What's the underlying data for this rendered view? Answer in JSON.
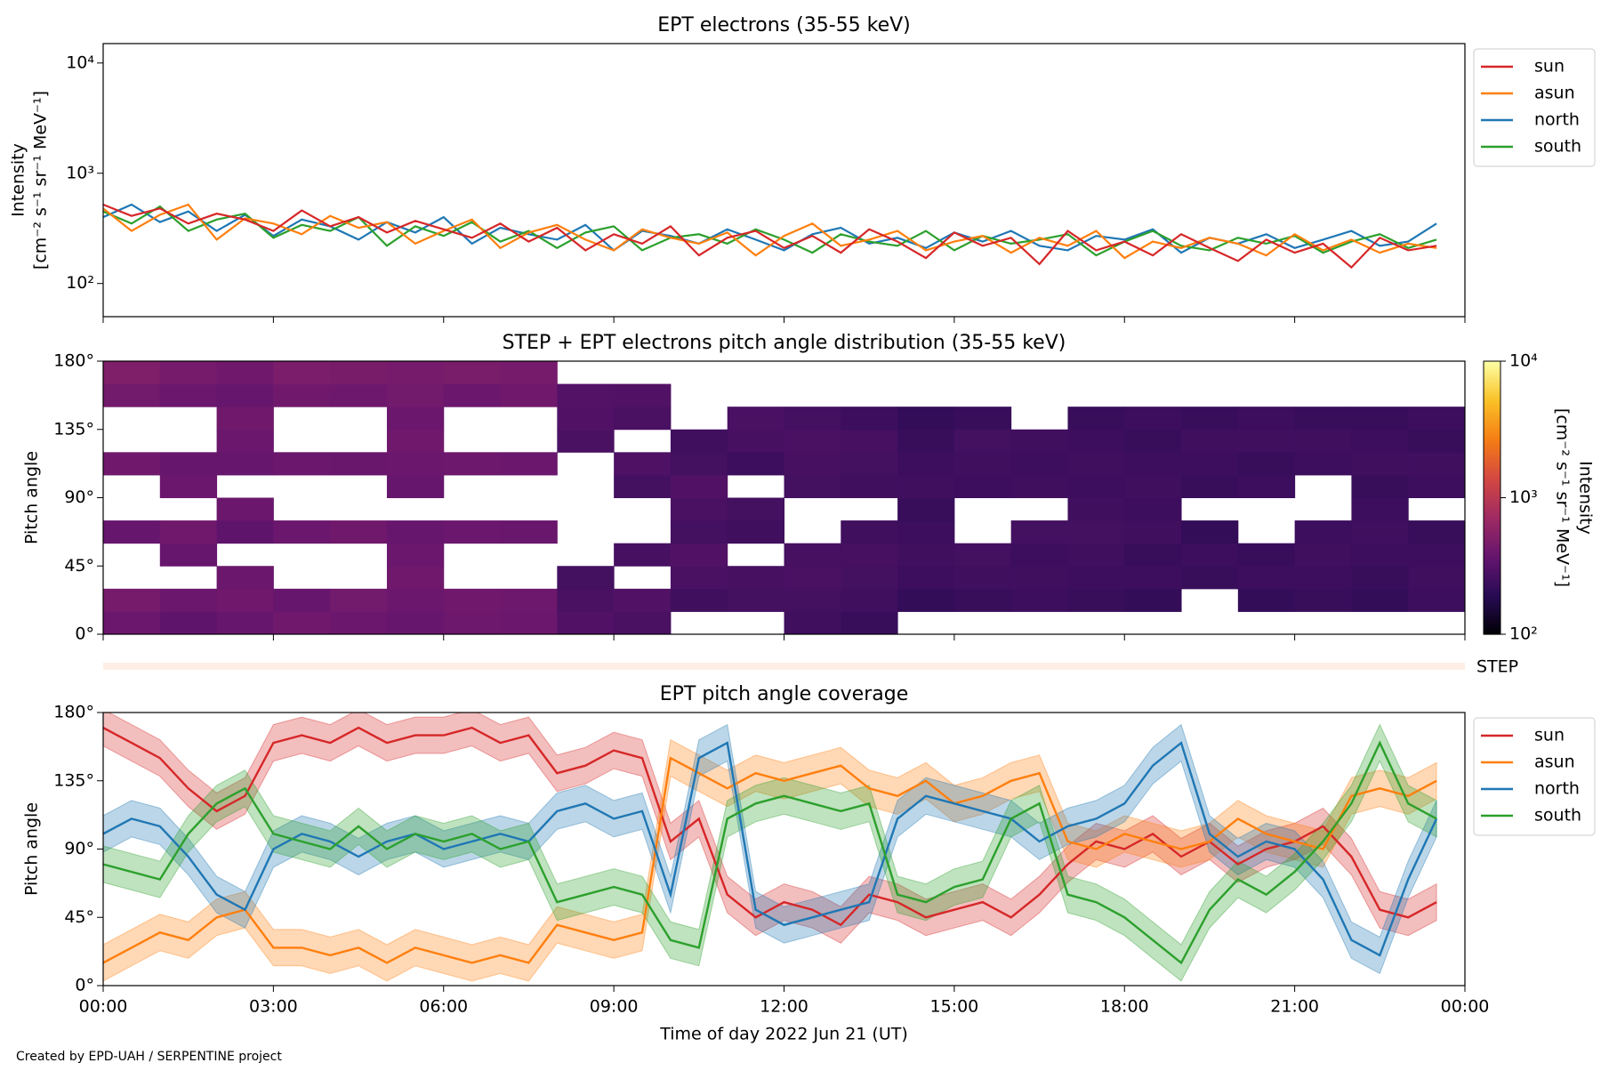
{
  "chart_data": [
    {
      "type": "line",
      "title": "EPT electrons (35-55 keV)",
      "ylabel": [
        "Intensity",
        "[cm⁻² s⁻¹ sr⁻¹ MeV⁻¹]"
      ],
      "log_y": true,
      "legend": "outside-right",
      "ylim": [
        50,
        15000
      ],
      "yticks": [
        {
          "value": 100,
          "label": "10²"
        },
        {
          "value": 1000,
          "label": "10³"
        },
        {
          "value": 10000,
          "label": "10⁴"
        }
      ],
      "x": [
        0,
        0.5,
        1,
        1.5,
        2,
        2.5,
        3,
        3.5,
        4,
        4.5,
        5,
        5.5,
        6,
        6.5,
        7,
        7.5,
        8,
        8.5,
        9,
        9.5,
        10,
        10.5,
        11,
        11.5,
        12,
        12.5,
        13,
        13.5,
        14,
        14.5,
        15,
        15.5,
        16,
        16.5,
        17,
        17.5,
        18,
        18.5,
        19,
        19.5,
        20,
        20.5,
        21,
        21.5,
        22,
        22.5,
        23,
        23.5
      ],
      "series": [
        {
          "name": "north",
          "color": "#1f77b4",
          "values": [
            400,
            520,
            360,
            450,
            300,
            420,
            270,
            380,
            330,
            250,
            360,
            290,
            400,
            230,
            320,
            280,
            250,
            340,
            200,
            300,
            270,
            230,
            310,
            250,
            200,
            280,
            320,
            230,
            260,
            210,
            290,
            240,
            300,
            220,
            200,
            270,
            250,
            310,
            190,
            260,
            230,
            280,
            210,
            250,
            300,
            220,
            240,
            350
          ]
        },
        {
          "name": "south",
          "color": "#2ca02c",
          "values": [
            450,
            350,
            500,
            300,
            380,
            430,
            260,
            340,
            300,
            400,
            220,
            330,
            270,
            360,
            240,
            300,
            210,
            290,
            330,
            200,
            260,
            280,
            230,
            310,
            250,
            190,
            280,
            240,
            220,
            300,
            200,
            270,
            230,
            250,
            280,
            180,
            240,
            300,
            220,
            200,
            260,
            230,
            270,
            190,
            240,
            280,
            210,
            250
          ]
        },
        {
          "name": "asun",
          "color": "#ff7f0e",
          "values": [
            480,
            300,
            420,
            520,
            250,
            390,
            350,
            280,
            410,
            320,
            360,
            230,
            300,
            380,
            210,
            290,
            340,
            250,
            200,
            310,
            260,
            230,
            290,
            180,
            270,
            350,
            220,
            250,
            300,
            200,
            240,
            270,
            190,
            260,
            220,
            300,
            170,
            240,
            210,
            260,
            230,
            180,
            280,
            200,
            250,
            190,
            230,
            210
          ]
        },
        {
          "name": "sun",
          "color": "#d62728",
          "values": [
            520,
            410,
            480,
            350,
            430,
            380,
            300,
            460,
            330,
            400,
            290,
            370,
            310,
            260,
            350,
            240,
            320,
            200,
            280,
            230,
            330,
            180,
            260,
            300,
            210,
            270,
            190,
            310,
            240,
            170,
            290,
            220,
            260,
            150,
            300,
            200,
            240,
            180,
            280,
            210,
            160,
            250,
            190,
            230,
            140,
            260,
            200,
            220
          ]
        }
      ],
      "legend_order": [
        3,
        2,
        0,
        1
      ]
    },
    {
      "type": "heatmap",
      "title": "STEP + EPT electrons pitch angle distribution (35-55 keV)",
      "ylabel": "Pitch angle",
      "colormap": "inferno",
      "log_color": true,
      "clim": [
        100,
        10000
      ],
      "cticks": [
        {
          "value": 100,
          "label": "10²"
        },
        {
          "value": 1000,
          "label": "10³"
        },
        {
          "value": 10000,
          "label": "10⁴"
        }
      ],
      "clabel": [
        "Intensity",
        "[cm⁻² s⁻¹ sr⁻¹ MeV⁻¹]"
      ],
      "ylim": [
        0,
        180
      ],
      "yticks": [
        {
          "value": 0,
          "label": "0°"
        },
        {
          "value": 45,
          "label": "45°"
        },
        {
          "value": 90,
          "label": "90°"
        },
        {
          "value": 135,
          "label": "135°"
        },
        {
          "value": 180,
          "label": "180°"
        }
      ],
      "xbins": [
        0,
        1,
        2,
        3,
        4,
        5,
        6,
        7,
        8,
        9,
        10,
        11,
        12,
        13,
        14,
        15,
        16,
        17,
        18,
        19,
        20,
        21,
        22,
        23,
        24
      ],
      "ybins": [
        0,
        15,
        30,
        45,
        60,
        75,
        90,
        105,
        120,
        135,
        150,
        165,
        180
      ],
      "z": [
        [
          400,
          450,
          null,
          null,
          380,
          null,
          null,
          420,
          null,
          null,
          430,
          500
        ],
        [
          350,
          400,
          null,
          380,
          420,
          null,
          400,
          380,
          null,
          null,
          400,
          450
        ],
        [
          380,
          420,
          400,
          null,
          350,
          400,
          null,
          380,
          400,
          420,
          380,
          420
        ],
        [
          420,
          380,
          null,
          null,
          400,
          null,
          null,
          400,
          null,
          null,
          420,
          480
        ],
        [
          400,
          430,
          null,
          null,
          420,
          null,
          null,
          390,
          null,
          null,
          410,
          460
        ],
        [
          380,
          400,
          420,
          400,
          380,
          null,
          380,
          400,
          420,
          400,
          430,
          450
        ],
        [
          410,
          420,
          null,
          null,
          400,
          null,
          null,
          410,
          null,
          null,
          400,
          470
        ],
        [
          400,
          410,
          null,
          null,
          390,
          null,
          null,
          400,
          null,
          null,
          420,
          450
        ],
        [
          300,
          280,
          260,
          null,
          null,
          null,
          null,
          null,
          280,
          300,
          310,
          null
        ],
        [
          280,
          300,
          null,
          270,
          null,
          null,
          260,
          290,
          null,
          280,
          300,
          null
        ],
        [
          null,
          250,
          280,
          300,
          260,
          280,
          300,
          260,
          250,
          null,
          null,
          null
        ],
        [
          null,
          260,
          270,
          null,
          250,
          260,
          null,
          240,
          270,
          280,
          null,
          null
        ],
        [
          250,
          260,
          280,
          270,
          null,
          null,
          260,
          270,
          280,
          260,
          null,
          null
        ],
        [
          230,
          250,
          260,
          270,
          250,
          null,
          250,
          260,
          270,
          240,
          null,
          null
        ],
        [
          null,
          220,
          240,
          250,
          240,
          230,
          250,
          240,
          230,
          220,
          null,
          null
        ],
        [
          null,
          230,
          250,
          260,
          null,
          null,
          240,
          250,
          260,
          230,
          null,
          null
        ],
        [
          null,
          240,
          250,
          240,
          260,
          null,
          250,
          240,
          250,
          null,
          null,
          null
        ],
        [
          null,
          230,
          240,
          250,
          260,
          250,
          240,
          250,
          240,
          230,
          null,
          null
        ],
        [
          null,
          220,
          240,
          230,
          250,
          240,
          250,
          240,
          230,
          240,
          null,
          null
        ],
        [
          null,
          null,
          230,
          240,
          220,
          null,
          230,
          240,
          250,
          230,
          null,
          null
        ],
        [
          null,
          220,
          240,
          230,
          null,
          null,
          240,
          230,
          250,
          240,
          null,
          null
        ],
        [
          null,
          230,
          240,
          250,
          240,
          null,
          null,
          240,
          250,
          230,
          null,
          null
        ],
        [
          null,
          220,
          230,
          240,
          250,
          240,
          230,
          250,
          240,
          230,
          null,
          null
        ],
        [
          null,
          240,
          250,
          240,
          230,
          null,
          240,
          250,
          230,
          240,
          null,
          null
        ]
      ],
      "step_label": "STEP"
    },
    {
      "type": "band",
      "title": "EPT pitch angle coverage",
      "ylabel": "Pitch angle",
      "xlabel": "Time of day 2022 Jun 21 (UT)",
      "legend": "outside-right",
      "xlim": [
        0,
        24
      ],
      "xticks": [
        {
          "value": 0,
          "label": "00:00"
        },
        {
          "value": 3,
          "label": "03:00"
        },
        {
          "value": 6,
          "label": "06:00"
        },
        {
          "value": 9,
          "label": "09:00"
        },
        {
          "value": 12,
          "label": "12:00"
        },
        {
          "value": 15,
          "label": "15:00"
        },
        {
          "value": 18,
          "label": "18:00"
        },
        {
          "value": 21,
          "label": "21:00"
        },
        {
          "value": 24,
          "label": "00:00"
        }
      ],
      "ylim": [
        0,
        180
      ],
      "yticks": [
        {
          "value": 0,
          "label": "0°"
        },
        {
          "value": 45,
          "label": "45°"
        },
        {
          "value": 90,
          "label": "90°"
        },
        {
          "value": 135,
          "label": "135°"
        },
        {
          "value": 180,
          "label": "180°"
        }
      ],
      "x": [
        0,
        0.5,
        1,
        1.5,
        2,
        2.5,
        3,
        3.5,
        4,
        4.5,
        5,
        5.5,
        6,
        6.5,
        7,
        7.5,
        8,
        8.5,
        9,
        9.5,
        10,
        10.5,
        11,
        11.5,
        12,
        12.5,
        13,
        13.5,
        14,
        14.5,
        15,
        15.5,
        16,
        16.5,
        17,
        17.5,
        18,
        18.5,
        19,
        19.5,
        20,
        20.5,
        21,
        21.5,
        22,
        22.5,
        23,
        23.5
      ],
      "series": [
        {
          "name": "sun",
          "color": "#d62728",
          "error": 12,
          "values": [
            170,
            160,
            150,
            130,
            115,
            125,
            160,
            165,
            160,
            170,
            160,
            165,
            165,
            170,
            160,
            165,
            140,
            145,
            155,
            150,
            95,
            110,
            60,
            45,
            55,
            50,
            40,
            60,
            55,
            45,
            50,
            55,
            45,
            60,
            80,
            95,
            90,
            100,
            85,
            95,
            80,
            90,
            95,
            105,
            85,
            50,
            45,
            55
          ]
        },
        {
          "name": "asun",
          "color": "#ff7f0e",
          "error": 12,
          "values": [
            15,
            25,
            35,
            30,
            45,
            50,
            25,
            25,
            20,
            25,
            15,
            25,
            20,
            15,
            20,
            15,
            40,
            35,
            30,
            35,
            150,
            140,
            130,
            140,
            135,
            140,
            145,
            130,
            125,
            135,
            120,
            125,
            135,
            140,
            95,
            90,
            100,
            95,
            90,
            95,
            110,
            100,
            95,
            90,
            125,
            130,
            125,
            135
          ]
        },
        {
          "name": "north",
          "color": "#1f77b4",
          "error": 12,
          "values": [
            100,
            110,
            105,
            85,
            60,
            50,
            90,
            100,
            95,
            85,
            95,
            100,
            90,
            95,
            100,
            95,
            115,
            120,
            110,
            115,
            60,
            150,
            160,
            50,
            40,
            45,
            50,
            55,
            110,
            125,
            120,
            115,
            110,
            95,
            105,
            110,
            120,
            145,
            160,
            100,
            85,
            95,
            90,
            70,
            30,
            20,
            70,
            110
          ]
        },
        {
          "name": "south",
          "color": "#2ca02c",
          "error": 12,
          "values": [
            80,
            75,
            70,
            100,
            120,
            130,
            100,
            95,
            90,
            105,
            90,
            100,
            95,
            100,
            90,
            95,
            55,
            60,
            65,
            60,
            30,
            25,
            110,
            120,
            125,
            120,
            115,
            120,
            60,
            55,
            65,
            70,
            110,
            120,
            60,
            55,
            45,
            30,
            15,
            50,
            70,
            60,
            75,
            95,
            120,
            160,
            120,
            110
          ]
        }
      ]
    }
  ],
  "footer": "Created by EPD-UAH / SERPENTINE project"
}
